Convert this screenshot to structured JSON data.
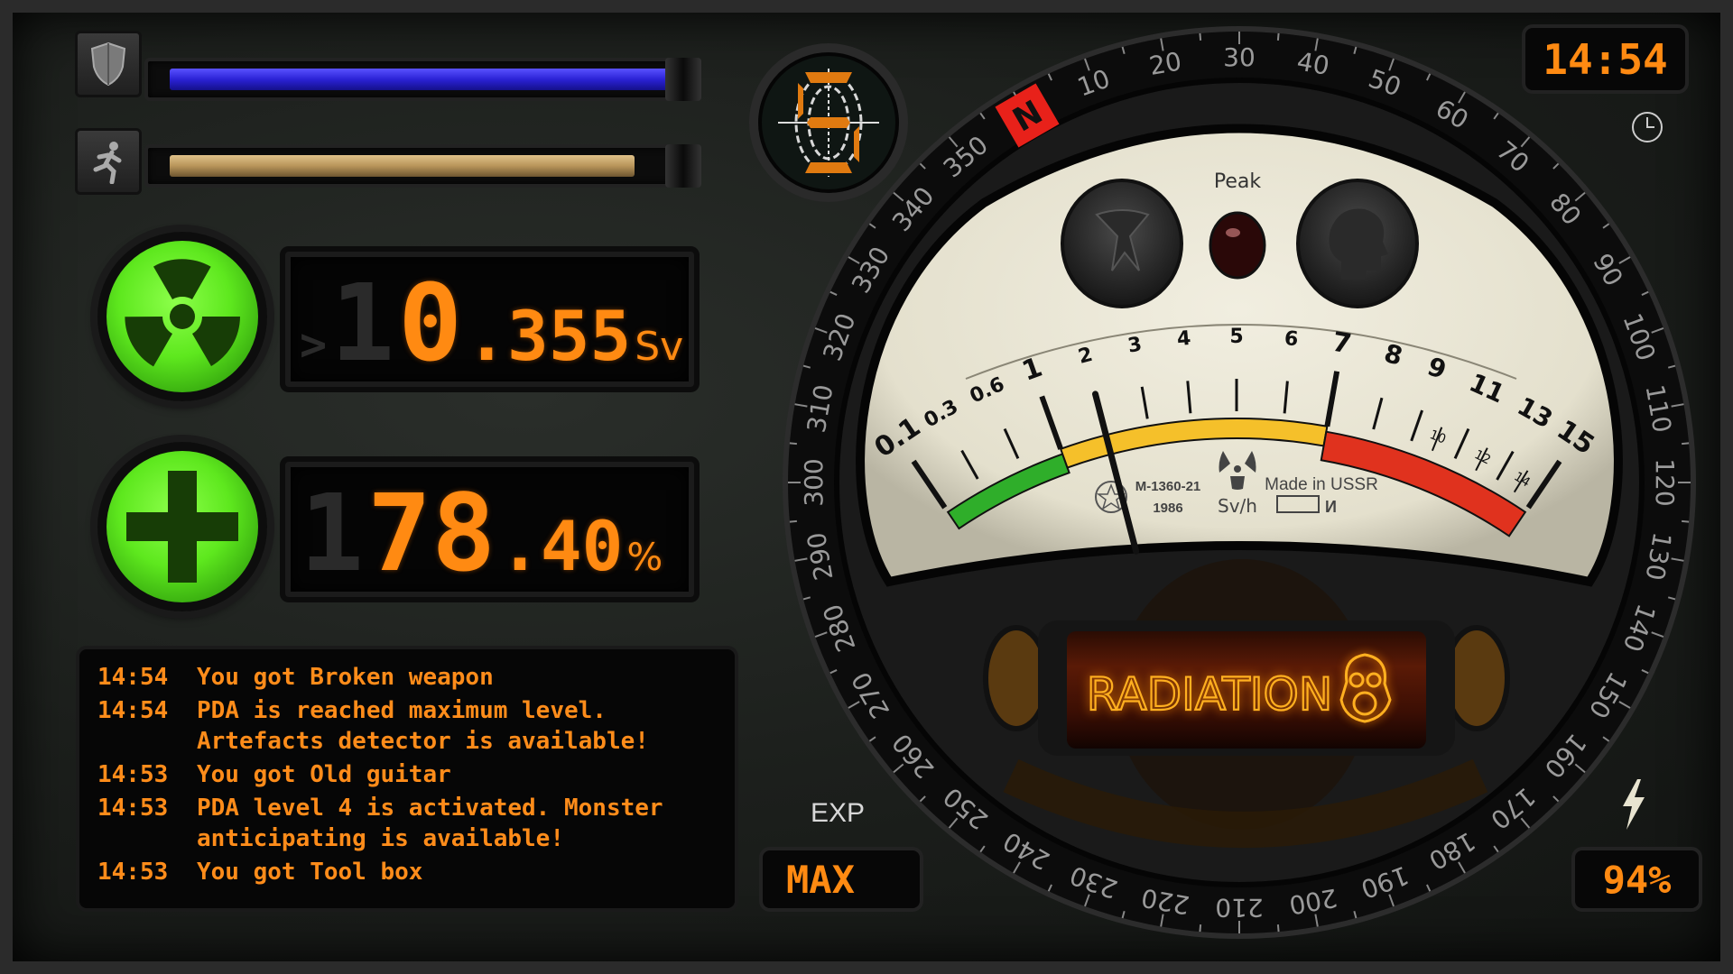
{
  "status_bars": {
    "armor": {
      "icon": "shield-icon",
      "level": 1.0,
      "color": "#2b22d6"
    },
    "stamina": {
      "icon": "running-man-icon",
      "level": 0.92,
      "color": "#b8955a"
    }
  },
  "radiation_display": {
    "icon": "radiation-trefoil-icon",
    "ghost": "1",
    "value_main": "0",
    "value_frac": ".355",
    "unit": "Sv",
    "prefix": ">"
  },
  "health_display": {
    "icon": "medical-cross-icon",
    "ghost": "1",
    "value_main": "78",
    "value_frac": ".40",
    "unit": "%"
  },
  "log": [
    {
      "time": "14:54",
      "message": "You got Broken weapon"
    },
    {
      "time": "14:54",
      "message": "PDA is reached maximum level.\nArtefacts detector is available!"
    },
    {
      "time": "14:53",
      "message": "You got Old guitar"
    },
    {
      "time": "14:53",
      "message": "PDA level 4 is activated. Monster\nanticipating is available!"
    },
    {
      "time": "14:53",
      "message": "You got Tool box"
    }
  ],
  "compass": {
    "north_label": "N",
    "bearings": [
      "10",
      "20",
      "30",
      "40",
      "50",
      "60",
      "70",
      "80",
      "90",
      "100",
      "110",
      "120",
      "130",
      "140",
      "150",
      "160",
      "170",
      "180",
      "190",
      "200",
      "210",
      "220",
      "230",
      "240",
      "250",
      "260",
      "270",
      "280",
      "290",
      "300",
      "310",
      "320",
      "330",
      "340",
      "350"
    ]
  },
  "meter": {
    "peak_label": "Peak",
    "scale_labels": [
      "0.1",
      "0.3",
      "0.6",
      "1",
      "2",
      "3",
      "4",
      "5",
      "6",
      "7",
      "8",
      "9",
      "11",
      "13",
      "15"
    ],
    "minor_labels": [
      "10",
      "12",
      "14"
    ],
    "needle_value": 2,
    "model": "M-1360-21",
    "year": "1986",
    "unit": "Sv/h",
    "made_in": "Made in USSR",
    "mark": "И",
    "zone_colors": {
      "safe": "#2fae2a",
      "warning": "#f5c02a",
      "danger": "#e0321e"
    }
  },
  "radiation_tube": {
    "label": "RADIATION",
    "icon": "gas-mask-icon"
  },
  "clock": {
    "time": "14:54",
    "icon": "clock-icon"
  },
  "exp": {
    "label": "EXP",
    "value": "MAX"
  },
  "battery": {
    "icon": "lightning-icon",
    "value": "94%"
  },
  "accent": "#ff8a12"
}
